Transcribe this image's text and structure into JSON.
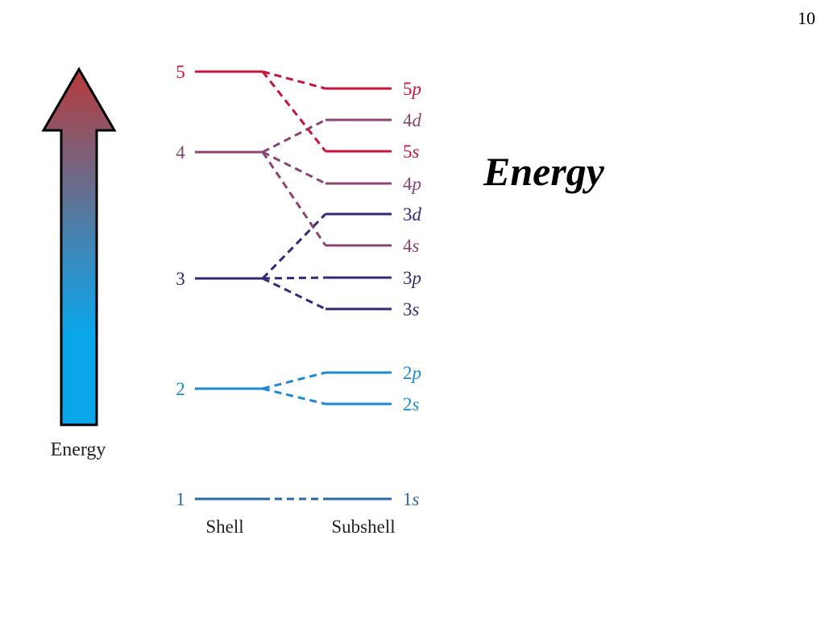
{
  "slide": {
    "number": "10",
    "title": "Energy"
  },
  "arrow": {
    "label": "Energy",
    "color_top": "#b83a3a",
    "color_mid": "#3f87b8",
    "color_bottom": "#0aa6ea"
  },
  "axis_labels": {
    "shell": "Shell",
    "subshell": "Subshell"
  },
  "colors": {
    "shell5": "#c8143c",
    "shell4": "#8a4470",
    "shell3": "#302a78",
    "shell2": "#1a8ad4",
    "shell1": "#2a68a8"
  },
  "shells": [
    {
      "label": "5",
      "color_key": "shell5"
    },
    {
      "label": "4",
      "color_key": "shell4"
    },
    {
      "label": "3",
      "color_key": "shell3"
    },
    {
      "label": "2",
      "color_key": "shell2"
    },
    {
      "label": "1",
      "color_key": "shell1"
    }
  ],
  "subshells": [
    {
      "number": "5",
      "letter": "p",
      "color_key": "shell5"
    },
    {
      "number": "4",
      "letter": "d",
      "color_key": "shell4"
    },
    {
      "number": "5",
      "letter": "s",
      "color_key": "shell5"
    },
    {
      "number": "4",
      "letter": "p",
      "color_key": "shell4"
    },
    {
      "number": "3",
      "letter": "d",
      "color_key": "shell3"
    },
    {
      "number": "4",
      "letter": "s",
      "color_key": "shell4"
    },
    {
      "number": "3",
      "letter": "p",
      "color_key": "shell3"
    },
    {
      "number": "3",
      "letter": "s",
      "color_key": "shell3"
    },
    {
      "number": "2",
      "letter": "p",
      "color_key": "shell2"
    },
    {
      "number": "2",
      "letter": "s",
      "color_key": "shell2"
    },
    {
      "number": "1",
      "letter": "s",
      "color_key": "shell1"
    }
  ]
}
